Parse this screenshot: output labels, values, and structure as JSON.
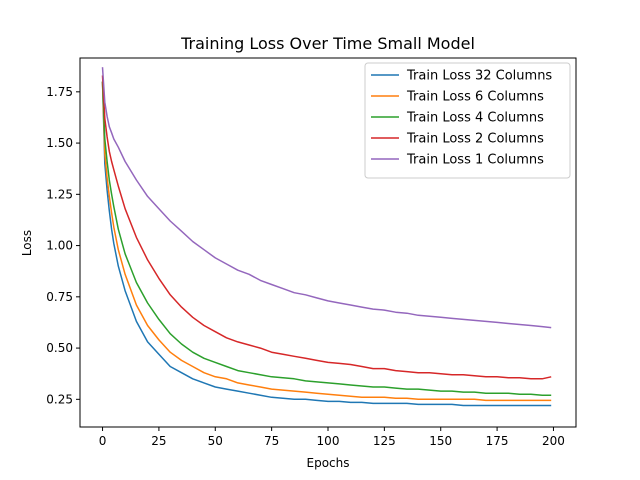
{
  "chart_data": {
    "type": "line",
    "title": "Training Loss Over Time Small Model",
    "xlabel": "Epochs",
    "ylabel": "Loss",
    "xlim": [
      -10,
      210
    ],
    "ylim": [
      0.115,
      1.915
    ],
    "xticks": [
      0,
      25,
      50,
      75,
      100,
      125,
      150,
      175,
      200
    ],
    "yticks": [
      0.25,
      0.5,
      0.75,
      1.0,
      1.25,
      1.5,
      1.75
    ],
    "ytick_labels": [
      "0.25",
      "0.50",
      "0.75",
      "1.00",
      "1.25",
      "1.50",
      "1.75"
    ],
    "grid": false,
    "legend_position": "top-right",
    "x": [
      0,
      1,
      2,
      3,
      4,
      5,
      7,
      10,
      15,
      20,
      25,
      30,
      35,
      40,
      45,
      50,
      55,
      60,
      65,
      70,
      75,
      80,
      85,
      90,
      95,
      100,
      105,
      110,
      115,
      120,
      125,
      130,
      135,
      140,
      145,
      150,
      155,
      160,
      165,
      170,
      175,
      180,
      185,
      190,
      195,
      199
    ],
    "series": [
      {
        "name": "Train Loss 32 Columns",
        "color": "#1f77b4",
        "values": [
          1.8,
          1.4,
          1.27,
          1.17,
          1.08,
          1.01,
          0.9,
          0.78,
          0.63,
          0.53,
          0.47,
          0.41,
          0.38,
          0.35,
          0.33,
          0.31,
          0.3,
          0.29,
          0.28,
          0.27,
          0.26,
          0.255,
          0.25,
          0.25,
          0.245,
          0.24,
          0.24,
          0.235,
          0.235,
          0.23,
          0.23,
          0.23,
          0.23,
          0.225,
          0.225,
          0.225,
          0.225,
          0.22,
          0.22,
          0.22,
          0.22,
          0.22,
          0.22,
          0.22,
          0.22,
          0.22
        ]
      },
      {
        "name": "Train Loss 6 Columns",
        "color": "#ff7f0e",
        "values": [
          1.8,
          1.45,
          1.33,
          1.24,
          1.16,
          1.09,
          0.98,
          0.86,
          0.71,
          0.61,
          0.54,
          0.48,
          0.44,
          0.41,
          0.38,
          0.36,
          0.35,
          0.33,
          0.32,
          0.31,
          0.3,
          0.295,
          0.29,
          0.285,
          0.28,
          0.275,
          0.27,
          0.265,
          0.26,
          0.26,
          0.26,
          0.255,
          0.255,
          0.25,
          0.25,
          0.25,
          0.25,
          0.25,
          0.25,
          0.245,
          0.245,
          0.245,
          0.245,
          0.245,
          0.245,
          0.245
        ]
      },
      {
        "name": "Train Loss 4 Columns",
        "color": "#2ca02c",
        "values": [
          1.8,
          1.52,
          1.41,
          1.32,
          1.25,
          1.19,
          1.08,
          0.96,
          0.82,
          0.72,
          0.64,
          0.57,
          0.52,
          0.48,
          0.45,
          0.43,
          0.41,
          0.39,
          0.38,
          0.37,
          0.36,
          0.355,
          0.35,
          0.34,
          0.335,
          0.33,
          0.325,
          0.32,
          0.315,
          0.31,
          0.31,
          0.305,
          0.3,
          0.3,
          0.295,
          0.29,
          0.29,
          0.285,
          0.285,
          0.28,
          0.28,
          0.28,
          0.275,
          0.275,
          0.27,
          0.27
        ]
      },
      {
        "name": "Train Loss 2 Columns",
        "color": "#d62728",
        "values": [
          1.83,
          1.62,
          1.53,
          1.46,
          1.41,
          1.37,
          1.29,
          1.18,
          1.04,
          0.93,
          0.84,
          0.76,
          0.7,
          0.65,
          0.61,
          0.58,
          0.55,
          0.53,
          0.515,
          0.5,
          0.48,
          0.47,
          0.46,
          0.45,
          0.44,
          0.43,
          0.425,
          0.42,
          0.41,
          0.4,
          0.4,
          0.39,
          0.385,
          0.38,
          0.38,
          0.375,
          0.37,
          0.37,
          0.365,
          0.36,
          0.36,
          0.355,
          0.355,
          0.35,
          0.35,
          0.36
        ]
      },
      {
        "name": "Train Loss 1 Columns",
        "color": "#9467bd",
        "values": [
          1.87,
          1.7,
          1.63,
          1.58,
          1.55,
          1.52,
          1.48,
          1.41,
          1.32,
          1.24,
          1.18,
          1.12,
          1.07,
          1.02,
          0.98,
          0.94,
          0.91,
          0.88,
          0.86,
          0.83,
          0.81,
          0.79,
          0.77,
          0.76,
          0.745,
          0.73,
          0.72,
          0.71,
          0.7,
          0.69,
          0.685,
          0.675,
          0.67,
          0.66,
          0.655,
          0.65,
          0.645,
          0.64,
          0.635,
          0.63,
          0.625,
          0.62,
          0.615,
          0.61,
          0.605,
          0.6
        ]
      }
    ]
  }
}
